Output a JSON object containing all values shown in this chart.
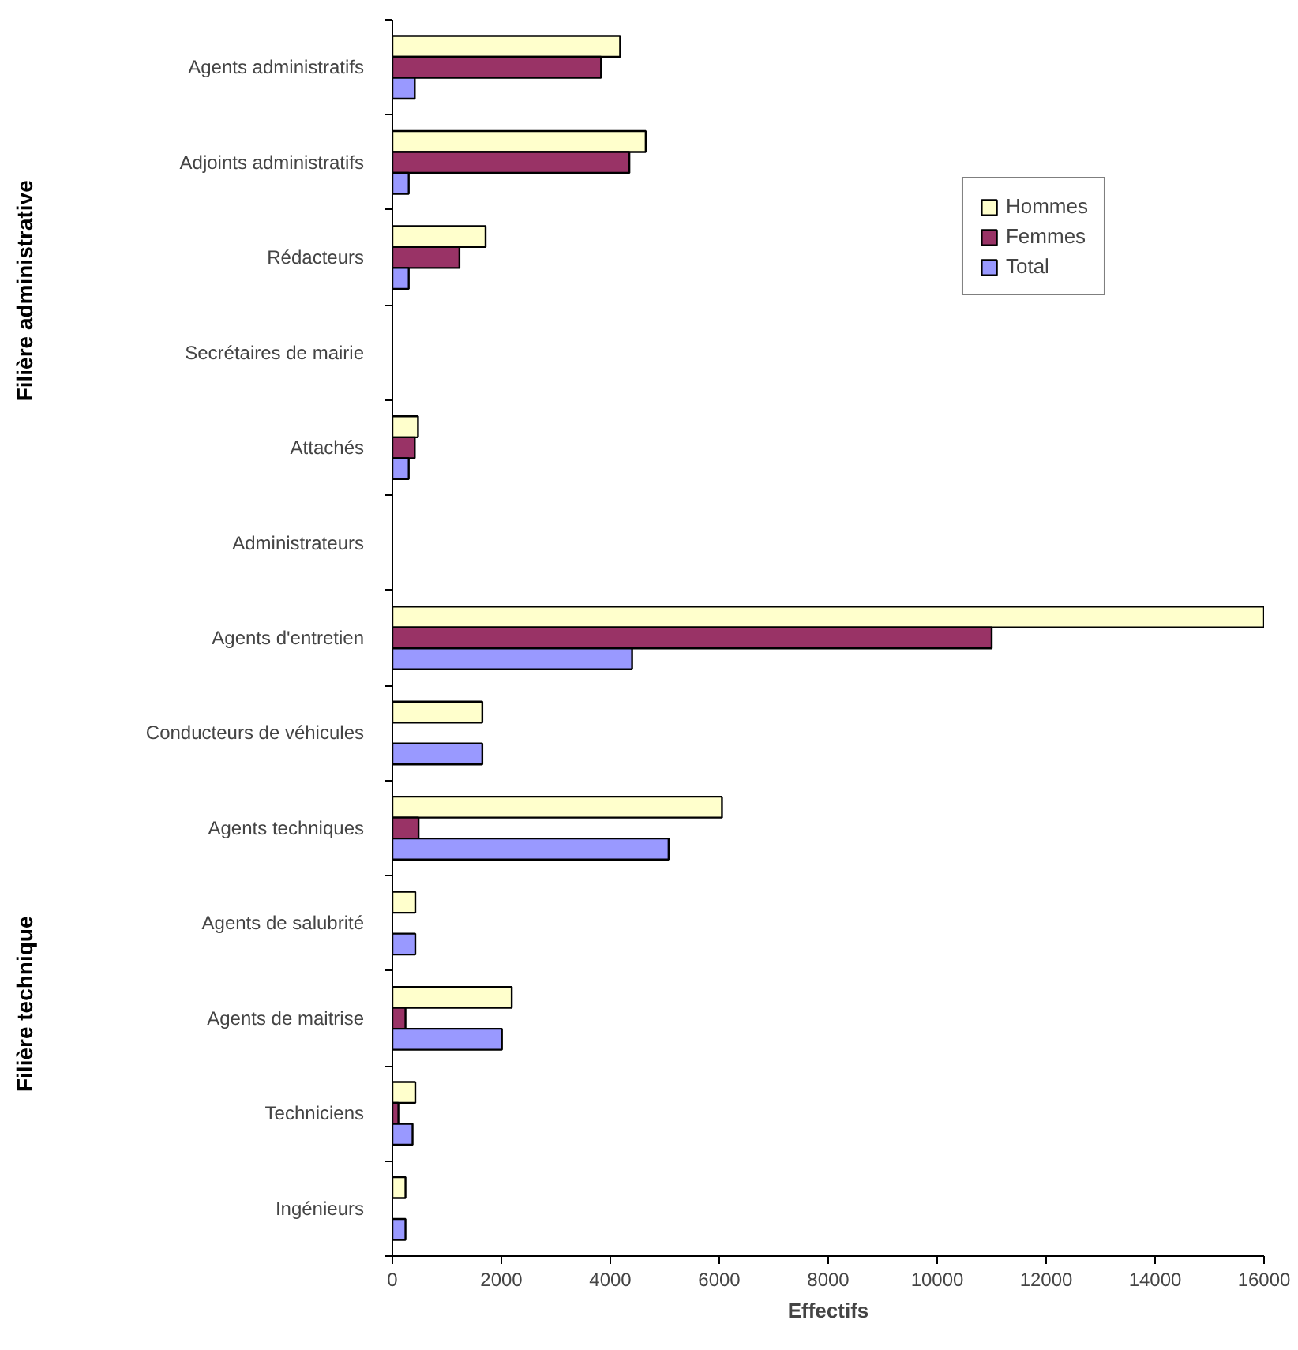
{
  "chart_data": {
    "type": "bar",
    "orientation": "horizontal",
    "xlabel": "Effectifs",
    "categories": [
      "Agents administratifs",
      "Adjoints administratifs",
      "Rédacteurs",
      "Secrétaires de mairie",
      "Attachés",
      "Administrateurs",
      "Agents d'entretien",
      "Conducteurs de véhicules",
      "Agents techniques",
      "Agents de salubrité",
      "Agents de maitrise",
      "Techniciens",
      "Ingénieurs"
    ],
    "series": [
      {
        "name": "Hommes",
        "color": "#ffffcc",
        "values": [
          4180,
          4650,
          1710,
          null,
          470,
          null,
          16000,
          1650,
          6050,
          420,
          2190,
          420,
          240
        ]
      },
      {
        "name": "Femmes",
        "color": "#993366",
        "values": [
          3830,
          4350,
          1230,
          null,
          410,
          null,
          11000,
          null,
          480,
          null,
          240,
          110,
          null
        ]
      },
      {
        "name": "Total",
        "color": "#9999ff",
        "values": [
          410,
          300,
          300,
          null,
          300,
          null,
          4400,
          1650,
          5070,
          420,
          2010,
          370,
          240
        ]
      }
    ],
    "xlim": [
      0,
      16000
    ],
    "xticks": [
      0,
      2000,
      4000,
      6000,
      8000,
      10000,
      12000,
      14000,
      16000
    ],
    "annotations": [
      "Filière administrative",
      "Filière technique"
    ],
    "legend": "top right",
    "grid": false
  }
}
